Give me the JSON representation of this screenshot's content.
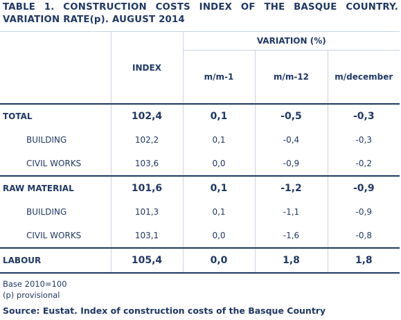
{
  "title": "TABLE 1. CONSTRUCTION COSTS INDEX OF THE BASQUE COUNTRY. VARIATION RATE(p). AUGUST 2014",
  "headers": {
    "index": "INDEX",
    "variation": "VARIATION (%)",
    "mm1": "m/m-1",
    "mm12": "m/m-12",
    "mdec": "m/december"
  },
  "rows": [
    {
      "label": "TOTAL",
      "index": "102,4",
      "mm1": "0,1",
      "mm12": "-0,5",
      "mdec": "-0,3"
    },
    {
      "label": "BUILDING",
      "index": "102,2",
      "mm1": "0,1",
      "mm12": "-0,4",
      "mdec": "-0,3"
    },
    {
      "label": "CIVIL WORKS",
      "index": "103,6",
      "mm1": "0,0",
      "mm12": "-0,9",
      "mdec": "-0,2"
    },
    {
      "label": "RAW MATERIAL",
      "index": "101,6",
      "mm1": "0,1",
      "mm12": "-1,2",
      "mdec": "-0,9"
    },
    {
      "label": "BUILDING",
      "index": "101,3",
      "mm1": "0,1",
      "mm12": "-1,1",
      "mdec": "-0,9"
    },
    {
      "label": "CIVIL WORKS",
      "index": "103,1",
      "mm1": "0,0",
      "mm12": "-1,6",
      "mdec": "-0,8"
    },
    {
      "label": "LABOUR",
      "index": "105,4",
      "mm1": "0,0",
      "mm12": "1,8",
      "mdec": "1,8"
    }
  ],
  "notes": {
    "base": "Base 2010=100",
    "provisional": "(p) provisional",
    "source": "Source: Eustat. Index of construction costs of the Basque Country"
  }
}
